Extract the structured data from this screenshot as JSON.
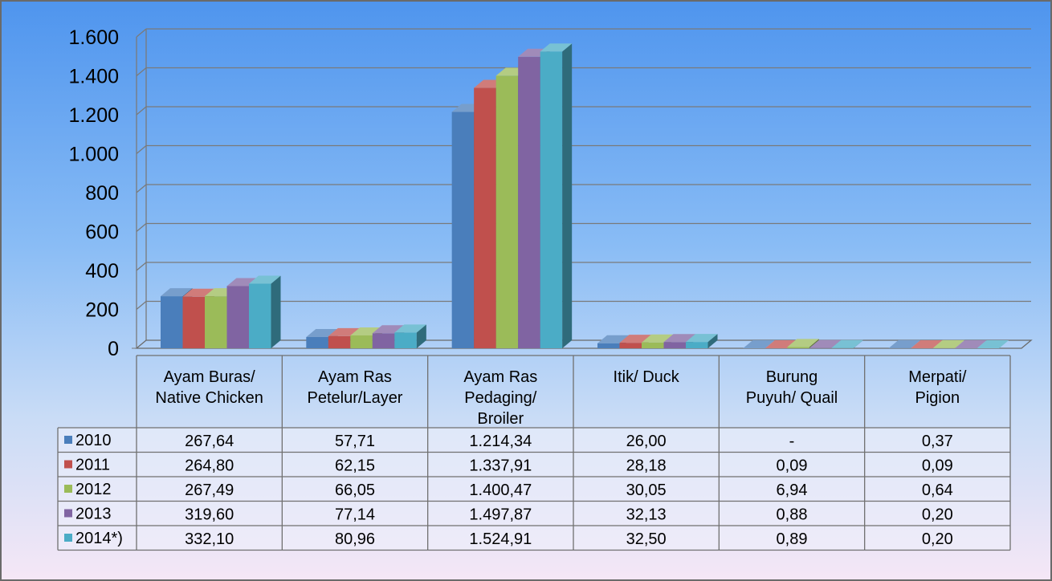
{
  "chart_data": {
    "type": "bar",
    "categories": [
      [
        "Ayam Buras/",
        "Native Chicken"
      ],
      [
        "Ayam Ras",
        "Petelur/Layer"
      ],
      [
        "Ayam Ras",
        "Pedaging/",
        "Broiler"
      ],
      [
        "Itik/ Duck"
      ],
      [
        "Burung",
        "Puyuh/ Quail"
      ],
      [
        "Merpati/",
        "Pigion"
      ]
    ],
    "series": [
      {
        "name": "2010",
        "values": [
          267.64,
          57.71,
          1214.34,
          26.0,
          null,
          0.37
        ],
        "labels": [
          "267,64",
          "57,71",
          "1.214,34",
          "26,00",
          "-",
          "0,37"
        ]
      },
      {
        "name": "2011",
        "values": [
          264.8,
          62.15,
          1337.91,
          28.18,
          0.09,
          0.09
        ],
        "labels": [
          "264,80",
          "62,15",
          "1.337,91",
          "28,18",
          "0,09",
          "0,09"
        ]
      },
      {
        "name": "2012",
        "values": [
          267.49,
          66.05,
          1400.47,
          30.05,
          6.94,
          0.64
        ],
        "labels": [
          "267,49",
          "66,05",
          "1.400,47",
          "30,05",
          "6,94",
          "0,64"
        ]
      },
      {
        "name": "2013",
        "values": [
          319.6,
          77.14,
          1497.87,
          32.13,
          0.88,
          0.2
        ],
        "labels": [
          "319,60",
          "77,14",
          "1.497,87",
          "32,13",
          "0,88",
          "0,20"
        ]
      },
      {
        "name": "2014*)",
        "values": [
          332.1,
          80.96,
          1524.91,
          32.5,
          0.89,
          0.2
        ],
        "labels": [
          "332,10",
          "80,96",
          "1.524,91",
          "32,50",
          "0,89",
          "0,20"
        ]
      }
    ],
    "series_colors": [
      "#4a7ebb",
      "#c0504d",
      "#9bbb59",
      "#8064a2",
      "#4bacc6"
    ],
    "ylim": [
      0,
      1600
    ],
    "yticks": [
      {
        "value": 0,
        "label": "0"
      },
      {
        "value": 200,
        "label": "200"
      },
      {
        "value": 400,
        "label": "400"
      },
      {
        "value": 600,
        "label": "600"
      },
      {
        "value": 800,
        "label": "800"
      },
      {
        "value": 1000,
        "label": "1.000"
      },
      {
        "value": 1200,
        "label": "1.200"
      },
      {
        "value": 1400,
        "label": "1.400"
      },
      {
        "value": 1600,
        "label": "1.600"
      }
    ],
    "grid": true,
    "legend": "data-table",
    "background_top": "#4f95ee",
    "background_bottom": "#f5e7f6"
  }
}
